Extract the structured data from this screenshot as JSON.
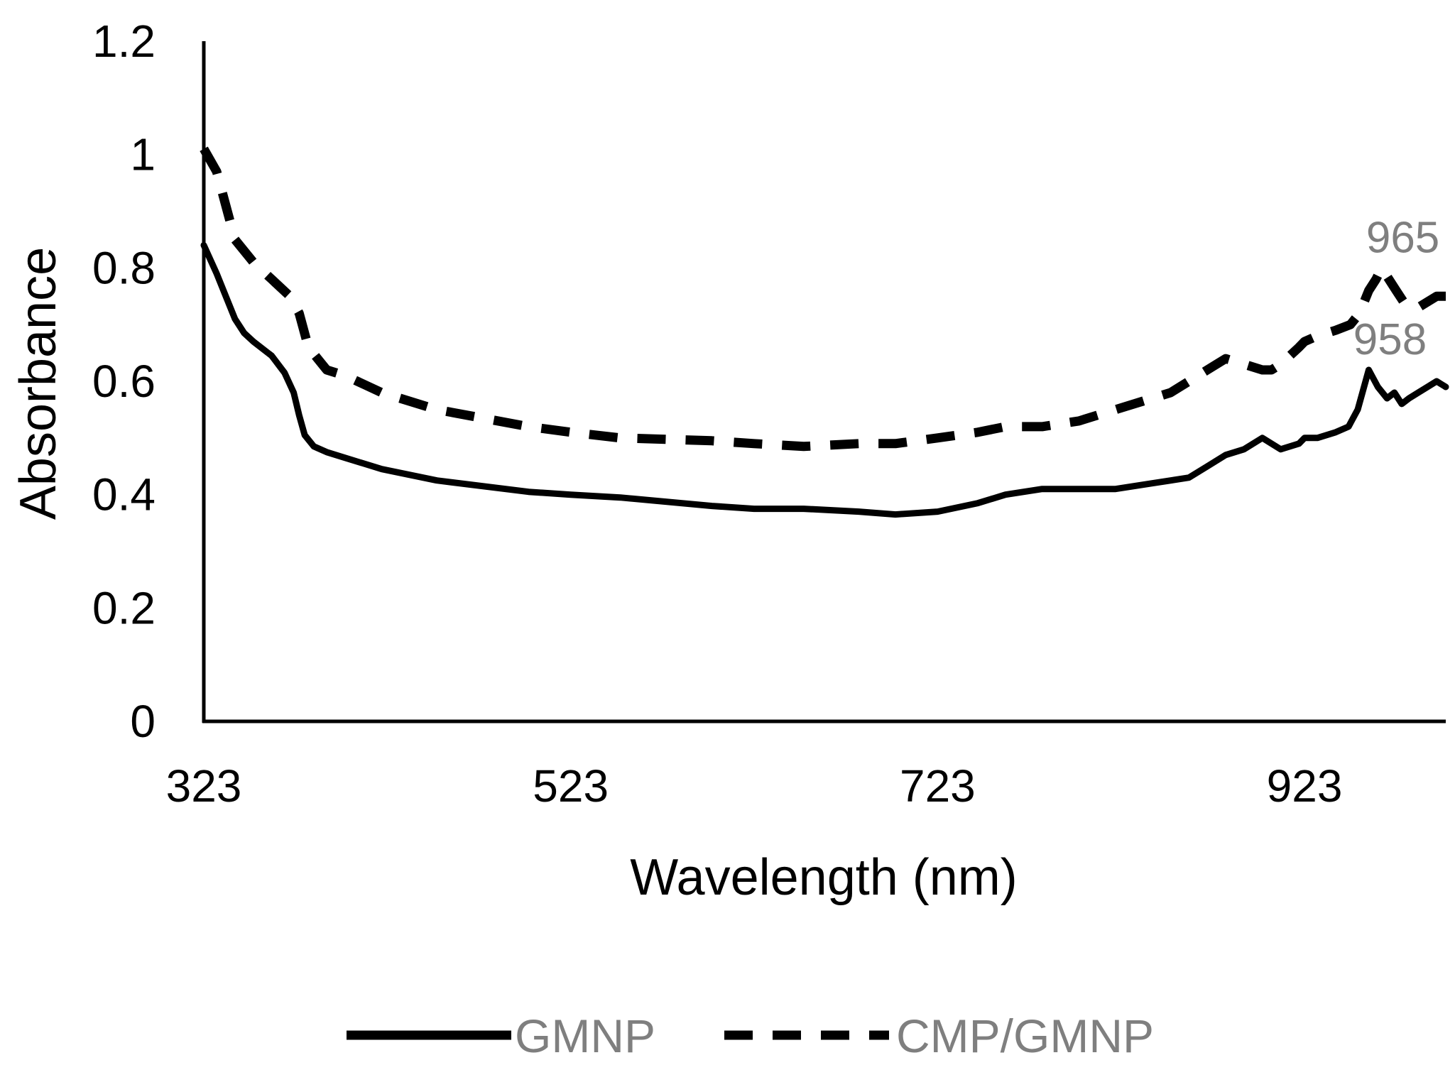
{
  "chart_data": {
    "type": "line",
    "title": "",
    "xlabel": "Wavelength (nm)",
    "ylabel": "Absorbance",
    "xlim": [
      323,
      1000
    ],
    "ylim": [
      0,
      1.2
    ],
    "x_ticks": [
      323,
      523,
      723,
      923
    ],
    "x_tick_labels": [
      "323",
      "523",
      "723",
      "923"
    ],
    "y_ticks": [
      0,
      0.2,
      0.4,
      0.6,
      0.8,
      1,
      1.2
    ],
    "y_tick_labels": [
      "0",
      "0.2",
      "0.4",
      "0.6",
      "0.8",
      "1",
      "1.2"
    ],
    "grid": false,
    "legend_position": "bottom",
    "colors": {
      "axis": "#000000",
      "line": "#000000",
      "text": "#000000",
      "annotation": "#7f7f7f",
      "legend_text": "#7f7f7f"
    },
    "series": [
      {
        "name": "GMNP",
        "style": "solid",
        "x": [
          323,
          330,
          335,
          340,
          345,
          350,
          360,
          367,
          372,
          375,
          378,
          383,
          390,
          400,
          420,
          450,
          500,
          523,
          550,
          600,
          623,
          650,
          680,
          700,
          723,
          745,
          760,
          780,
          800,
          820,
          840,
          860,
          870,
          880,
          890,
          900,
          905,
          910,
          920,
          923,
          930,
          940,
          947,
          952,
          958,
          963,
          968,
          972,
          976,
          980,
          985,
          990,
          995,
          1000
        ],
        "y": [
          0.84,
          0.79,
          0.75,
          0.71,
          0.685,
          0.67,
          0.645,
          0.615,
          0.58,
          0.54,
          0.505,
          0.485,
          0.475,
          0.465,
          0.445,
          0.425,
          0.405,
          0.4,
          0.395,
          0.38,
          0.375,
          0.375,
          0.37,
          0.365,
          0.37,
          0.385,
          0.4,
          0.41,
          0.41,
          0.41,
          0.42,
          0.43,
          0.45,
          0.47,
          0.48,
          0.5,
          0.49,
          0.48,
          0.49,
          0.5,
          0.5,
          0.51,
          0.52,
          0.55,
          0.62,
          0.59,
          0.57,
          0.58,
          0.56,
          0.57,
          0.58,
          0.59,
          0.6,
          0.59
        ]
      },
      {
        "name": "CMP/GMNP",
        "style": "dashed",
        "x": [
          323,
          330,
          335,
          340,
          350,
          360,
          370,
          375,
          380,
          390,
          400,
          420,
          450,
          500,
          523,
          550,
          600,
          623,
          650,
          680,
          700,
          723,
          745,
          760,
          780,
          800,
          820,
          840,
          850,
          860,
          870,
          880,
          890,
          900,
          905,
          910,
          920,
          923,
          930,
          940,
          948,
          953,
          958,
          962,
          965,
          969,
          973,
          977,
          981,
          985,
          990,
          995,
          1000
        ],
        "y": [
          1.01,
          0.97,
          0.91,
          0.85,
          0.81,
          0.78,
          0.75,
          0.72,
          0.66,
          0.62,
          0.61,
          0.58,
          0.55,
          0.52,
          0.51,
          0.5,
          0.495,
          0.49,
          0.485,
          0.49,
          0.49,
          0.5,
          0.51,
          0.52,
          0.52,
          0.53,
          0.55,
          0.57,
          0.58,
          0.6,
          0.62,
          0.64,
          0.63,
          0.62,
          0.62,
          0.63,
          0.66,
          0.67,
          0.68,
          0.69,
          0.7,
          0.72,
          0.76,
          0.78,
          0.8,
          0.78,
          0.76,
          0.74,
          0.74,
          0.73,
          0.74,
          0.75,
          0.75
        ]
      }
    ],
    "annotations": [
      {
        "label": "965",
        "x": 965,
        "y": 0.8
      },
      {
        "label": "958",
        "x": 958,
        "y": 0.62
      }
    ]
  }
}
